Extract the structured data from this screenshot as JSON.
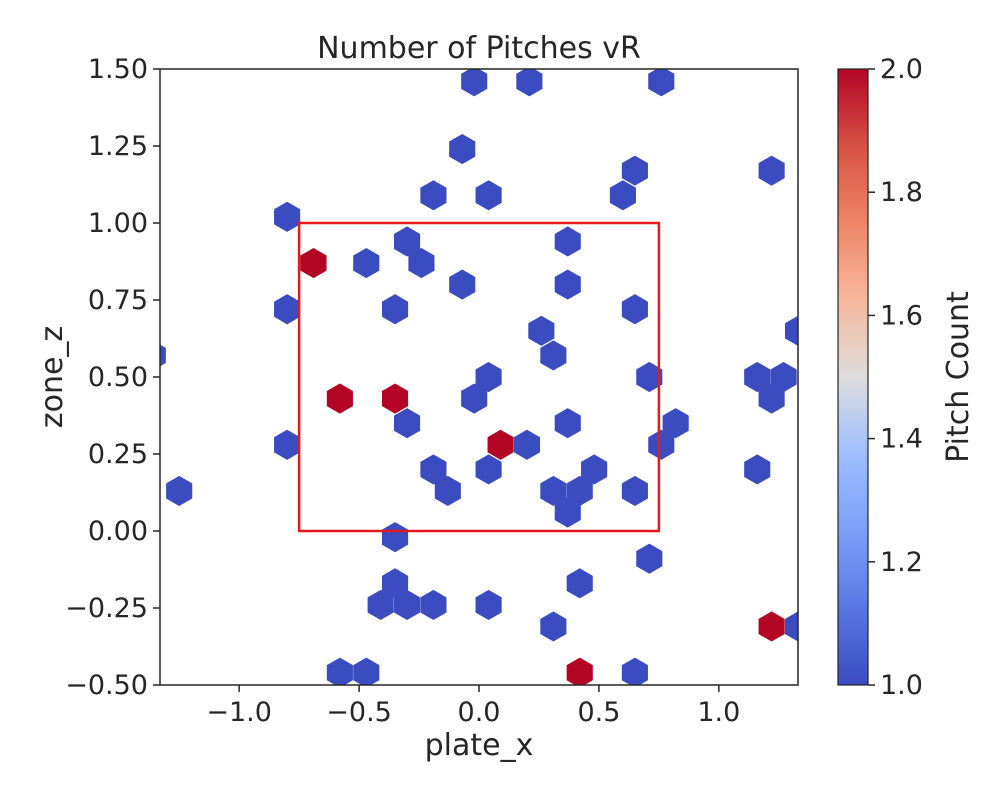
{
  "chart_data": {
    "type": "hexbin",
    "title": "Number of Pitches vR",
    "xlabel": "plate_x",
    "ylabel": "zone_z",
    "xlim": [
      -1.33,
      1.33
    ],
    "ylim": [
      -0.5,
      1.5
    ],
    "x_ticks": [
      -1.0,
      -0.5,
      0.0,
      0.5,
      1.0
    ],
    "x_tick_labels": [
      "−1.0",
      "−0.5",
      "0.0",
      "0.5",
      "1.0"
    ],
    "y_ticks": [
      -0.5,
      -0.25,
      0.0,
      0.25,
      0.5,
      0.75,
      1.0,
      1.25,
      1.5
    ],
    "y_tick_labels": [
      "−0.50",
      "−0.25",
      "0.00",
      "0.25",
      "0.50",
      "0.75",
      "1.00",
      "1.25",
      "1.50"
    ],
    "grid": false,
    "colormap": "coolwarm",
    "low_color": "#3b4cc0",
    "high_color": "#b40426",
    "zone_box_color": "#e41a1c",
    "colorbar": {
      "label": "Pitch Count",
      "range": [
        1.0,
        2.0
      ],
      "ticks": [
        1.0,
        1.2,
        1.4,
        1.6,
        1.8,
        2.0
      ],
      "tick_labels": [
        "1.0",
        "1.2",
        "1.4",
        "1.6",
        "1.8",
        "2.0"
      ]
    },
    "strike_zone": {
      "x": [
        -0.75,
        0.75
      ],
      "z": [
        0.0,
        1.0
      ]
    },
    "bins": [
      {
        "x": -0.02,
        "z": 1.46,
        "count": 1
      },
      {
        "x": 0.21,
        "z": 1.46,
        "count": 1
      },
      {
        "x": 0.76,
        "z": 1.46,
        "count": 1
      },
      {
        "x": -0.07,
        "z": 1.24,
        "count": 1
      },
      {
        "x": 0.65,
        "z": 1.17,
        "count": 1
      },
      {
        "x": 1.22,
        "z": 1.17,
        "count": 1
      },
      {
        "x": -0.19,
        "z": 1.09,
        "count": 1
      },
      {
        "x": 0.04,
        "z": 1.09,
        "count": 1
      },
      {
        "x": 0.6,
        "z": 1.09,
        "count": 1
      },
      {
        "x": -0.8,
        "z": 1.02,
        "count": 1
      },
      {
        "x": -0.3,
        "z": 0.94,
        "count": 1
      },
      {
        "x": 0.37,
        "z": 0.94,
        "count": 1
      },
      {
        "x": -0.69,
        "z": 0.87,
        "count": 2
      },
      {
        "x": -0.47,
        "z": 0.87,
        "count": 1
      },
      {
        "x": -0.24,
        "z": 0.87,
        "count": 1
      },
      {
        "x": -0.07,
        "z": 0.8,
        "count": 1
      },
      {
        "x": 0.37,
        "z": 0.8,
        "count": 1
      },
      {
        "x": -0.8,
        "z": 0.72,
        "count": 1
      },
      {
        "x": -0.35,
        "z": 0.72,
        "count": 1
      },
      {
        "x": 0.65,
        "z": 0.72,
        "count": 1
      },
      {
        "x": 0.26,
        "z": 0.65,
        "count": 1
      },
      {
        "x": 1.33,
        "z": 0.65,
        "count": 1
      },
      {
        "x": -1.36,
        "z": 0.57,
        "count": 1
      },
      {
        "x": 0.31,
        "z": 0.57,
        "count": 1
      },
      {
        "x": 0.04,
        "z": 0.5,
        "count": 1
      },
      {
        "x": 0.71,
        "z": 0.5,
        "count": 1
      },
      {
        "x": 1.16,
        "z": 0.5,
        "count": 1
      },
      {
        "x": 1.27,
        "z": 0.5,
        "count": 1
      },
      {
        "x": -0.58,
        "z": 0.43,
        "count": 2
      },
      {
        "x": -0.35,
        "z": 0.43,
        "count": 2
      },
      {
        "x": -0.02,
        "z": 0.43,
        "count": 1
      },
      {
        "x": 1.22,
        "z": 0.43,
        "count": 1
      },
      {
        "x": -0.3,
        "z": 0.35,
        "count": 1
      },
      {
        "x": 0.37,
        "z": 0.35,
        "count": 1
      },
      {
        "x": 0.82,
        "z": 0.35,
        "count": 1
      },
      {
        "x": -0.8,
        "z": 0.28,
        "count": 1
      },
      {
        "x": 0.09,
        "z": 0.28,
        "count": 2
      },
      {
        "x": 0.2,
        "z": 0.28,
        "count": 1
      },
      {
        "x": 0.76,
        "z": 0.28,
        "count": 1
      },
      {
        "x": -0.19,
        "z": 0.2,
        "count": 1
      },
      {
        "x": 0.04,
        "z": 0.2,
        "count": 1
      },
      {
        "x": 0.48,
        "z": 0.2,
        "count": 1
      },
      {
        "x": 1.16,
        "z": 0.2,
        "count": 1
      },
      {
        "x": -1.25,
        "z": 0.13,
        "count": 1
      },
      {
        "x": -0.13,
        "z": 0.13,
        "count": 1
      },
      {
        "x": 0.31,
        "z": 0.13,
        "count": 1
      },
      {
        "x": 0.42,
        "z": 0.13,
        "count": 1
      },
      {
        "x": 0.65,
        "z": 0.13,
        "count": 1
      },
      {
        "x": 0.37,
        "z": 0.06,
        "count": 1
      },
      {
        "x": -0.35,
        "z": -0.02,
        "count": 1
      },
      {
        "x": 0.71,
        "z": -0.09,
        "count": 1
      },
      {
        "x": -0.35,
        "z": -0.17,
        "count": 1
      },
      {
        "x": 0.42,
        "z": -0.17,
        "count": 1
      },
      {
        "x": -0.41,
        "z": -0.24,
        "count": 1
      },
      {
        "x": -0.3,
        "z": -0.24,
        "count": 1
      },
      {
        "x": -0.19,
        "z": -0.24,
        "count": 1
      },
      {
        "x": 0.04,
        "z": -0.24,
        "count": 1
      },
      {
        "x": 0.31,
        "z": -0.31,
        "count": 1
      },
      {
        "x": 1.22,
        "z": -0.31,
        "count": 2
      },
      {
        "x": 1.33,
        "z": -0.31,
        "count": 1
      },
      {
        "x": -0.58,
        "z": -0.46,
        "count": 1
      },
      {
        "x": -0.47,
        "z": -0.46,
        "count": 1
      },
      {
        "x": 0.42,
        "z": -0.46,
        "count": 2
      },
      {
        "x": 0.65,
        "z": -0.46,
        "count": 1
      }
    ]
  }
}
